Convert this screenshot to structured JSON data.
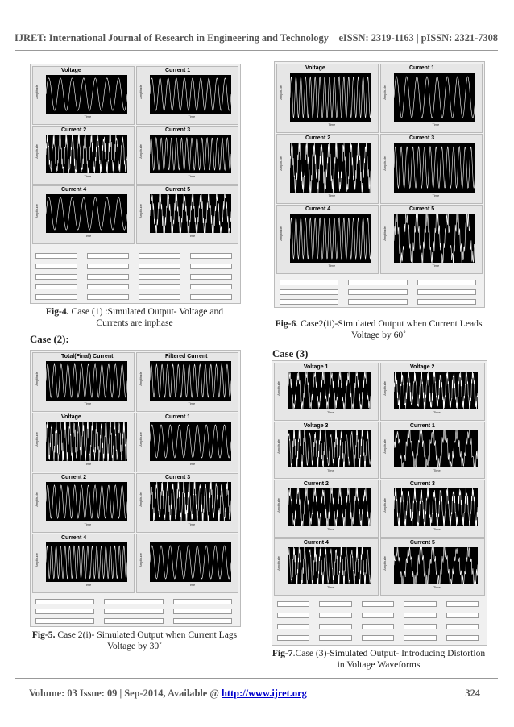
{
  "header": {
    "journal": "IJRET: International Journal of Research in Engineering and Technology",
    "issn": "eISSN: 2319-1163 | pISSN: 2321-7308"
  },
  "footer": {
    "volume": "Volume: 03 Issue: 09 | Sep-2014, Available @ ",
    "link": "http://www.ijret.org",
    "page": "324"
  },
  "sections": {
    "case2": "Case (2):",
    "case3": "Case (3)"
  },
  "captions": {
    "fig4_label": "Fig-4.",
    "fig4_text": " Case (1) :Simulated Output- Voltage and Currents are inphase",
    "fig5_label": "Fig-5.",
    "fig5_text": " Case 2(i)- Simulated Output when Current Lags Voltage by 30˚",
    "fig6_label": "Fig-6",
    "fig6_text": ". Case2(ii)-Simulated Output when Current Leads Voltage by 60˚",
    "fig7_label": "Fig-7",
    "fig7_text": ".Case (3)-Simulated Output- Introducing Distortion in Voltage Waveforms"
  },
  "figures": {
    "fig4": [
      "Voltage",
      "Current 1",
      "Current 2",
      "Current 3",
      "Current 4",
      "Current 5"
    ],
    "fig5": [
      "Total(Final) Current",
      "Filtered Current",
      "Voltage",
      "Current 1",
      "Current 2",
      "Current 3",
      "Current 4",
      ""
    ],
    "fig6": [
      "Voltage",
      "Current 1",
      "Current 2",
      "Current 3",
      "Current 4",
      "Current 5"
    ],
    "fig7": [
      "Voltage 1",
      "Voltage 2",
      "Voltage 3",
      "Current 1",
      "Current 2",
      "Current 3",
      "Current 4",
      "Current 5"
    ]
  },
  "axis": {
    "amplitude": "Amplitude",
    "time": "Time"
  },
  "colors": {
    "plot_bg": "#000000",
    "trace": "#ffffff",
    "panel": "#e6e6e6",
    "link": "#0000cc"
  }
}
